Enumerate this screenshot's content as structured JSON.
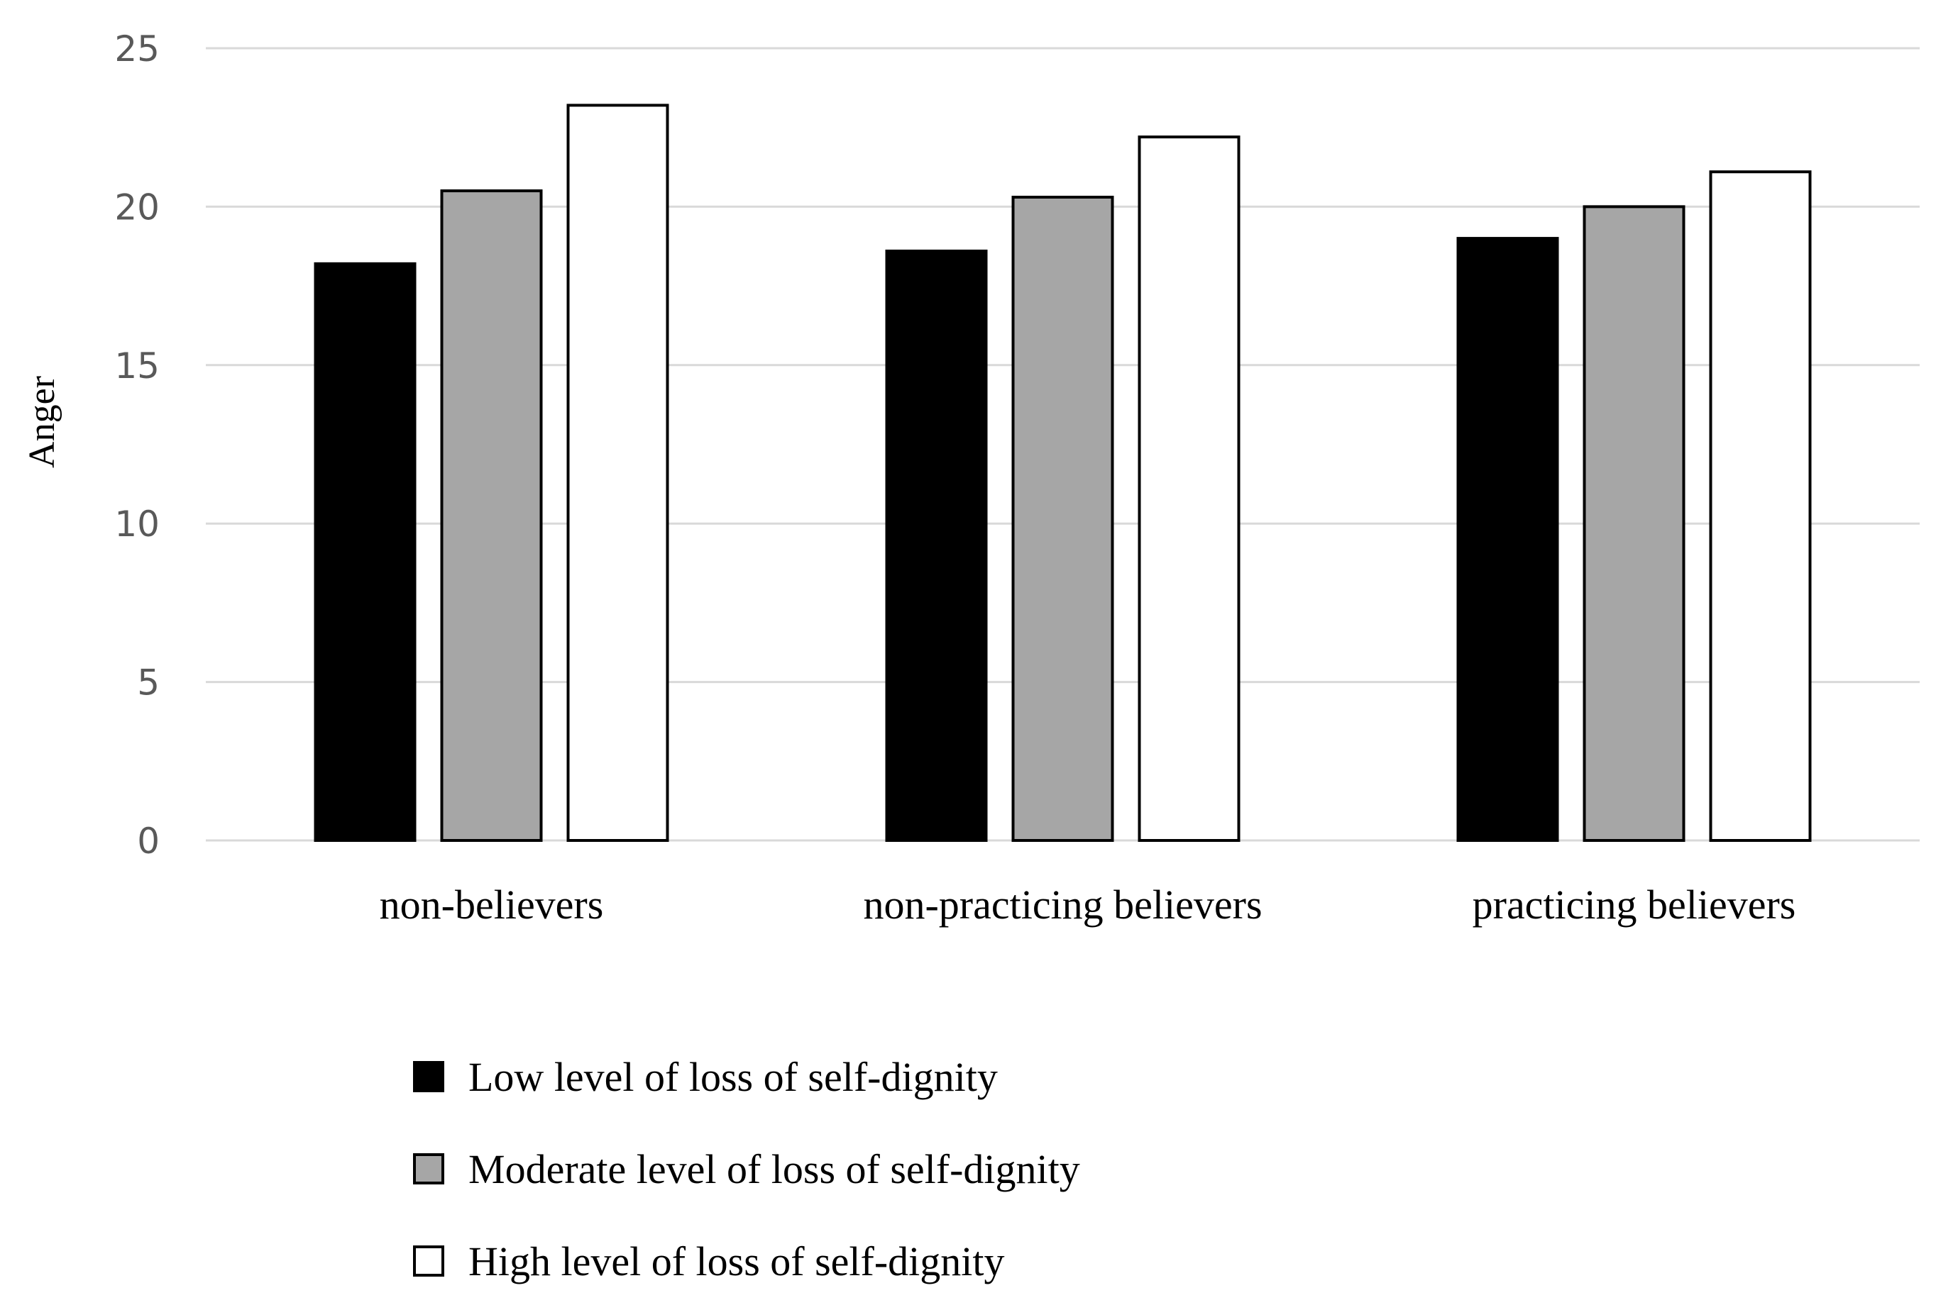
{
  "chart_data": {
    "type": "bar",
    "title": "",
    "xlabel": "",
    "ylabel": "Anger",
    "ylim": [
      0,
      25
    ],
    "yticks": [
      0,
      5,
      10,
      15,
      20,
      25
    ],
    "grid": true,
    "legend_position": "bottom",
    "categories": [
      "non-believers",
      "non-practicing believers",
      "practicing believers"
    ],
    "series": [
      {
        "name": "Low level of loss of self-dignity",
        "color": "#000000",
        "values": [
          18.2,
          18.6,
          19.0
        ]
      },
      {
        "name": "Moderate level of loss of self-dignity",
        "color": "#a6a6a6",
        "values": [
          20.5,
          20.3,
          20.0
        ]
      },
      {
        "name": "High level of loss of self-dignity",
        "color": "#ffffff",
        "values": [
          23.2,
          22.2,
          21.1
        ]
      }
    ]
  }
}
